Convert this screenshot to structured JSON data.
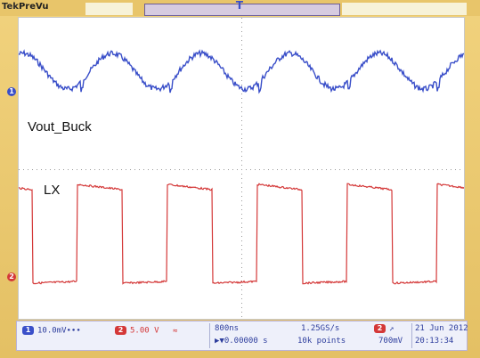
{
  "header": {
    "brand": "Tek",
    "mode": "PreVu"
  },
  "traces": {
    "ch1_label": "Vout_Buck",
    "ch2_label": "LX",
    "ch1_color": "#3a4fc9",
    "ch2_color": "#d43838",
    "ch1_marker": "1",
    "ch2_marker": "2",
    "trigger_marker": "T"
  },
  "status_bar": {
    "ch1_chip": "1",
    "ch1_scale": "10.0mV∙∙∙",
    "ch2_chip": "2",
    "ch2_scale": "5.00 V",
    "ch2_coupling": "≈",
    "timebase": "800ns",
    "position": "▶▼0.00000 s",
    "sample_rate": "1.25GS/s",
    "record_length": "10k points",
    "trigger_chip": "2",
    "trigger_slope": "↗",
    "trigger_level": "700mV",
    "date": "21 Jun 2012",
    "time": "20:13:34"
  }
}
